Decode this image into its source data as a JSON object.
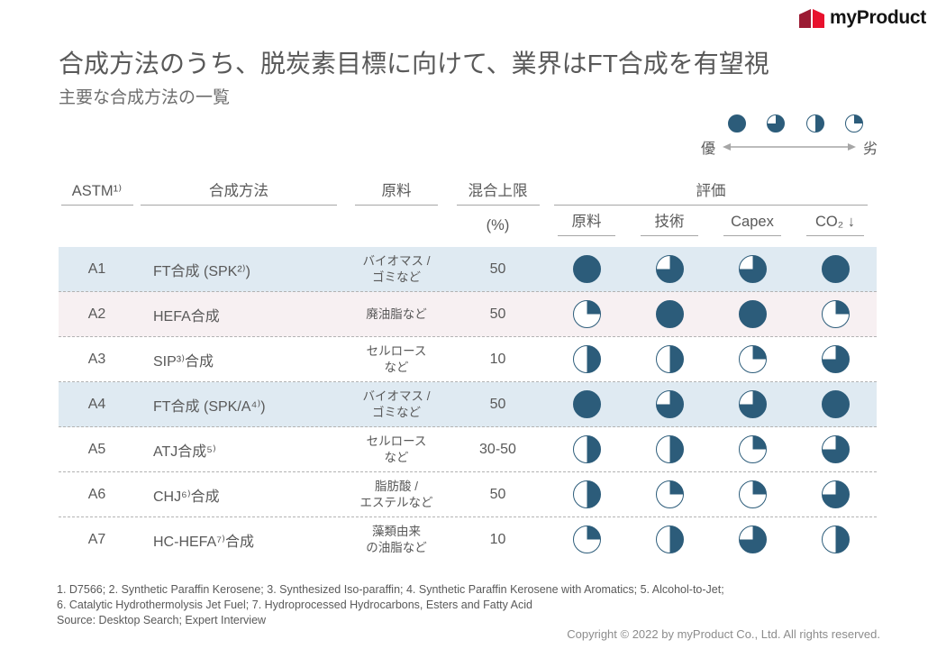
{
  "logo": {
    "text": "myProduct",
    "mark_colors": {
      "left": "#9b1b33",
      "right": "#e8112d"
    }
  },
  "title": "合成方法のうち、脱炭素目標に向けて、業界はFT合成を有望視",
  "subtitle": "主要な合成方法の一覧",
  "legend": {
    "best_label": "優",
    "worst_label": "劣",
    "scale": [
      1,
      0.75,
      0.5,
      0.25
    ]
  },
  "table": {
    "headers": {
      "astm": "ASTM¹⁾",
      "method": "合成方法",
      "feedstock": "原料",
      "blend_limit": "混合上限",
      "blend_limit_unit": "(%)",
      "evaluation": "評価",
      "eval_criteria": [
        "原料",
        "技術",
        "Capex",
        "CO₂ ↓"
      ]
    },
    "rows": [
      {
        "id": "A1",
        "method": "FT合成 (SPK²⁾)",
        "feedstock": "バイオマス /\nゴミなど",
        "blend": "50",
        "scores": [
          1,
          0.75,
          0.75,
          1
        ],
        "bg": "blue"
      },
      {
        "id": "A2",
        "method": "HEFA合成",
        "feedstock": "廃油脂など",
        "blend": "50",
        "scores": [
          0.25,
          1,
          1,
          0.25
        ],
        "bg": "pink"
      },
      {
        "id": "A3",
        "method": "SIP³⁾合成",
        "feedstock": "セルロース\nなど",
        "blend": "10",
        "scores": [
          0.5,
          0.5,
          0.25,
          0.75
        ],
        "bg": "white"
      },
      {
        "id": "A4",
        "method": "FT合成 (SPK/A⁴⁾)",
        "feedstock": "バイオマス /\nゴミなど",
        "blend": "50",
        "scores": [
          1,
          0.75,
          0.75,
          1
        ],
        "bg": "blue"
      },
      {
        "id": "A5",
        "method": "ATJ合成⁵⁾",
        "feedstock": "セルロース\nなど",
        "blend": "30-50",
        "scores": [
          0.5,
          0.5,
          0.25,
          0.75
        ],
        "bg": "white"
      },
      {
        "id": "A6",
        "method": "CHJ⁶⁾合成",
        "feedstock": "脂肪酸 /\nエステルなど",
        "blend": "50",
        "scores": [
          0.5,
          0.25,
          0.25,
          0.75
        ],
        "bg": "white"
      },
      {
        "id": "A7",
        "method": "HC-HEFA⁷⁾合成",
        "feedstock": "藻類由来\nの油脂など",
        "blend": "10",
        "scores": [
          0.25,
          0.5,
          0.75,
          0.5
        ],
        "bg": "white"
      }
    ]
  },
  "footnotes": [
    "1. D7566; 2. Synthetic Paraffin Kerosene; 3. Synthesized Iso-paraffin; 4. Synthetic Paraffin Kerosene with Aromatics; 5. Alcohol-to-Jet;",
    "6. Catalytic Hydrothermolysis Jet Fuel; 7. Hydroprocessed Hydrocarbons, Esters and Fatty Acid"
  ],
  "source": "Source: Desktop Search; Expert Interview",
  "copyright": "Copyright © 2022 by myProduct Co., Ltd.  All rights reserved.",
  "colors": {
    "harvey_ball": "#2c5c7a",
    "row_highlight_blue": "#dfeaf2",
    "row_highlight_pink": "#f7f0f2"
  }
}
